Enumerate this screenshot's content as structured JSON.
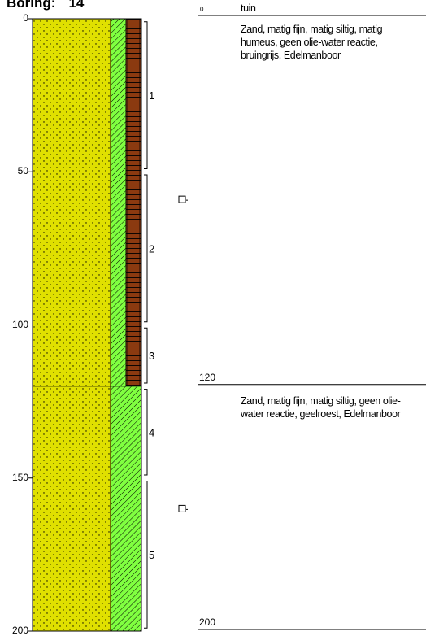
{
  "title": {
    "label": "Boring:",
    "number": "14"
  },
  "depth_axis": {
    "ticks": [
      0,
      50,
      100,
      150,
      200
    ],
    "min": 0,
    "max": 200
  },
  "layers": [
    {
      "top": 0,
      "bottom": 120,
      "top_label": "0",
      "bottom_label": "120",
      "header": "tuin",
      "description": "Zand, matig fijn, matig siltig, matig humeus, geen olie-water reactie, bruingrijs, Edelmanboor",
      "colors": {
        "main": "#e0e000",
        "band": "#80ff40",
        "extra": "#8b3a10"
      }
    },
    {
      "top": 120,
      "bottom": 200,
      "top_label": "",
      "bottom_label": "200",
      "header": "",
      "description": "Zand, matig fijn, matig siltig, geen olie-water reactie, geelroest, Edelmanboor",
      "colors": {
        "main": "#e0e000",
        "band": "#80ff40"
      }
    }
  ],
  "samples": [
    {
      "label": "1",
      "top": 1,
      "bottom": 49
    },
    {
      "label": "2",
      "top": 51,
      "bottom": 99
    },
    {
      "label": "3",
      "top": 101,
      "bottom": 119
    },
    {
      "label": "4",
      "top": 121,
      "bottom": 149
    },
    {
      "label": "5",
      "top": 151,
      "bottom": 199
    }
  ],
  "markers": [
    {
      "depth": 59
    },
    {
      "depth": 160
    }
  ]
}
